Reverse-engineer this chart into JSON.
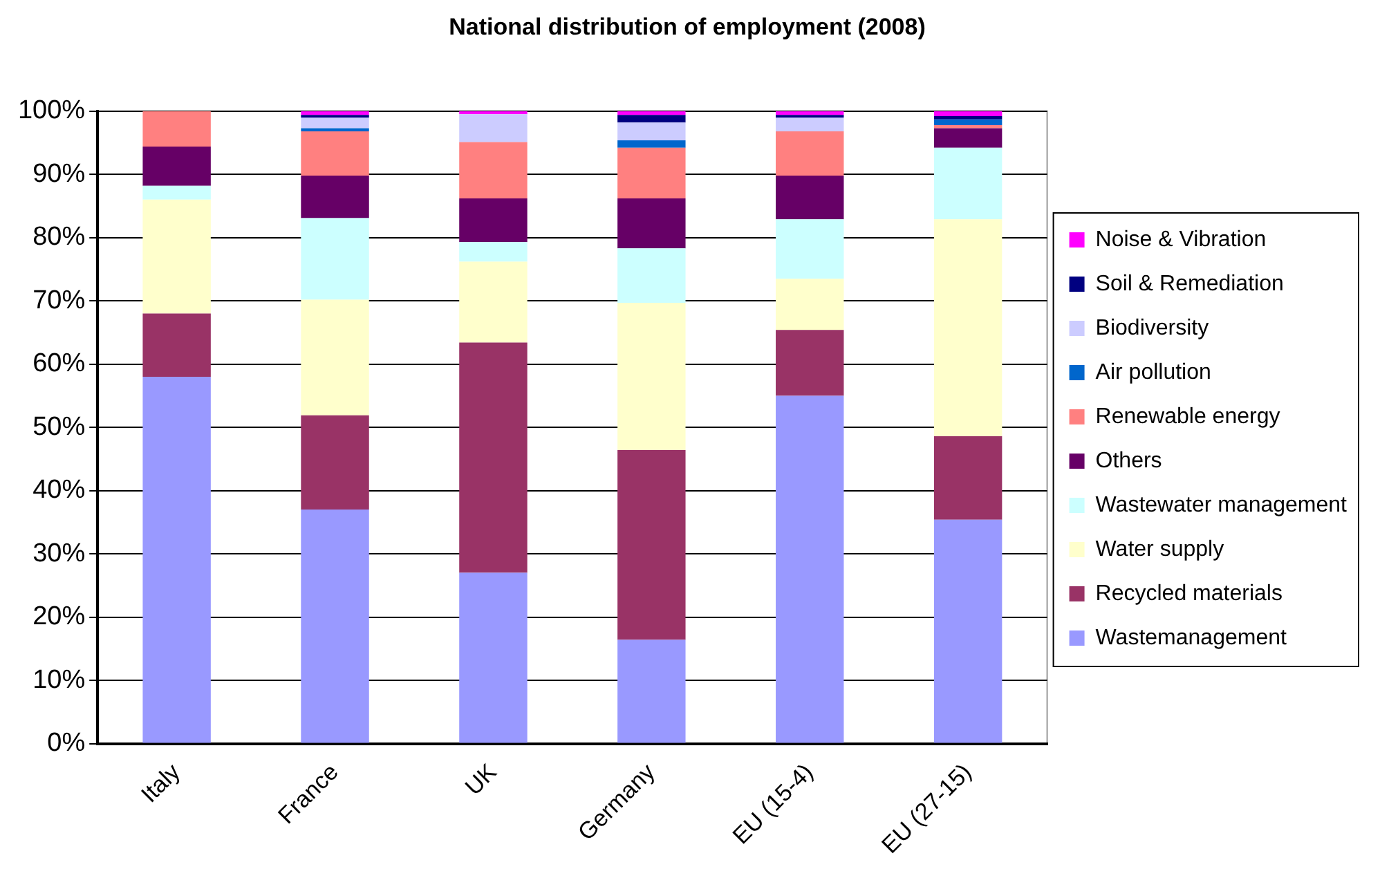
{
  "chart_data": {
    "type": "bar",
    "title": "National distribution of employment (2008)",
    "stacked": true,
    "categories": [
      "Italy",
      "France",
      "UK",
      "Germany",
      "EU (15-4)",
      "EU (27-15)"
    ],
    "series": [
      {
        "name": "Wastemanagement",
        "color": "#9999ff",
        "values": [
          58,
          37,
          27,
          16.4,
          55,
          35.4
        ]
      },
      {
        "name": "Recycled materials",
        "color": "#993366",
        "values": [
          10,
          14.9,
          36.4,
          30,
          10.4,
          13.2
        ]
      },
      {
        "name": "Water supply",
        "color": "#ffffcc",
        "values": [
          18,
          18.3,
          12.8,
          23.3,
          8.1,
          34.3
        ]
      },
      {
        "name": "Wastewater management",
        "color": "#ccffff",
        "values": [
          2.2,
          12.9,
          3.1,
          8.6,
          9.4,
          11.3
        ]
      },
      {
        "name": "Others",
        "color": "#660066",
        "values": [
          6.2,
          6.7,
          6.9,
          7.9,
          6.9,
          3.1
        ]
      },
      {
        "name": "Renewable energy",
        "color": "#ff8080",
        "values": [
          5.6,
          7,
          8.9,
          8,
          7,
          0.5
        ]
      },
      {
        "name": "Air pollution",
        "color": "#0066cc",
        "values": [
          0,
          0.5,
          0,
          1.2,
          0,
          0.9
        ]
      },
      {
        "name": "Biodiversity",
        "color": "#ccccff",
        "values": [
          0,
          1.7,
          4.4,
          2.8,
          2.2,
          0
        ]
      },
      {
        "name": "Soil & Remediation",
        "color": "#000080",
        "values": [
          0,
          0.4,
          0,
          1.2,
          0.4,
          0.5
        ]
      },
      {
        "name": "Noise & Vibration",
        "color": "#ff00ff",
        "values": [
          0,
          0.6,
          0.5,
          0.6,
          0.6,
          0.8
        ]
      }
    ],
    "ylim": [
      0,
      100
    ],
    "yticks": [
      {
        "value": 0,
        "label": "0%"
      },
      {
        "value": 10,
        "label": "10%"
      },
      {
        "value": 20,
        "label": "20%"
      },
      {
        "value": 30,
        "label": "30%"
      },
      {
        "value": 40,
        "label": "40%"
      },
      {
        "value": 50,
        "label": "50%"
      },
      {
        "value": 60,
        "label": "60%"
      },
      {
        "value": 70,
        "label": "70%"
      },
      {
        "value": 80,
        "label": "80%"
      },
      {
        "value": 90,
        "label": "90%"
      },
      {
        "value": 100,
        "label": "100%"
      }
    ],
    "grid": "y",
    "legend": "right"
  }
}
